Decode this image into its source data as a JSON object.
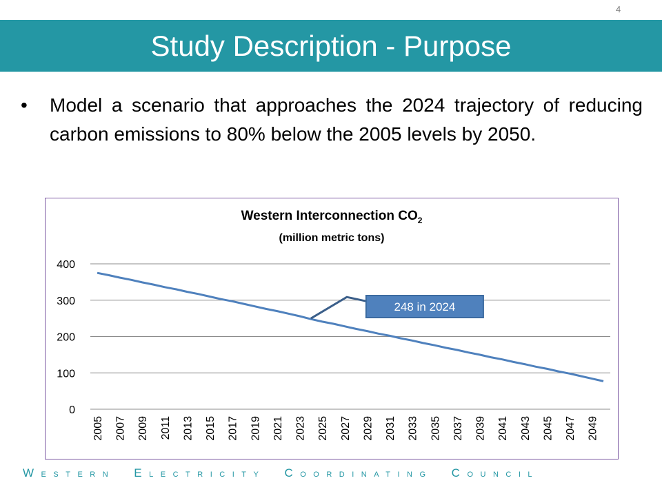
{
  "slide": {
    "page_number": "4",
    "title": "Study Description - Purpose",
    "bullet": "Model a scenario that approaches the 2024 trajectory of reducing carbon emissions to 80% below the 2005 levels by 2050.",
    "footer_words": [
      "Western",
      "Electricity",
      "Coordinating",
      "Council"
    ],
    "colors": {
      "title_bar": "#2497a4",
      "footer_text": "#2497a4",
      "chart_border": "#7c5aa3"
    }
  },
  "chart_data": {
    "type": "line",
    "title": "Western Interconnection CO2",
    "title_main": "Western Interconnection CO",
    "title_subscript": "2",
    "subtitle": "(million metric tons)",
    "xlabel": "",
    "ylabel": "",
    "ylim": [
      0,
      400
    ],
    "yticks": [
      0,
      100,
      200,
      300,
      400
    ],
    "x_tick_labels": [
      "2005",
      "2007",
      "2009",
      "2011",
      "2013",
      "2015",
      "2017",
      "2019",
      "2021",
      "2023",
      "2025",
      "2027",
      "2029",
      "2031",
      "2033",
      "2035",
      "2037",
      "2039",
      "2041",
      "2043",
      "2045",
      "2047",
      "2049"
    ],
    "x": [
      2005,
      2006,
      2007,
      2008,
      2009,
      2010,
      2011,
      2012,
      2013,
      2014,
      2015,
      2016,
      2017,
      2018,
      2019,
      2020,
      2021,
      2022,
      2023,
      2024,
      2025,
      2026,
      2027,
      2028,
      2029,
      2030,
      2031,
      2032,
      2033,
      2034,
      2035,
      2036,
      2037,
      2038,
      2039,
      2040,
      2041,
      2042,
      2043,
      2044,
      2045,
      2046,
      2047,
      2048,
      2049,
      2050
    ],
    "series": [
      {
        "color": "#4f81bd",
        "values": [
          375,
          369,
          362,
          356,
          349,
          343,
          336,
          330,
          323,
          317,
          310,
          303,
          297,
          290,
          283,
          276,
          270,
          263,
          256,
          248,
          241,
          235,
          228,
          221,
          215,
          208,
          202,
          195,
          189,
          182,
          176,
          169,
          163,
          156,
          150,
          143,
          137,
          130,
          124,
          117,
          111,
          104,
          98,
          91,
          84,
          77
        ]
      }
    ],
    "annotation": {
      "text": "248 in 2024",
      "x": 2024,
      "y": 248,
      "fill": "#4f81bd",
      "border": "#3b6aa0",
      "text_color": "#ffffff"
    },
    "grid": true,
    "legend": "none"
  }
}
